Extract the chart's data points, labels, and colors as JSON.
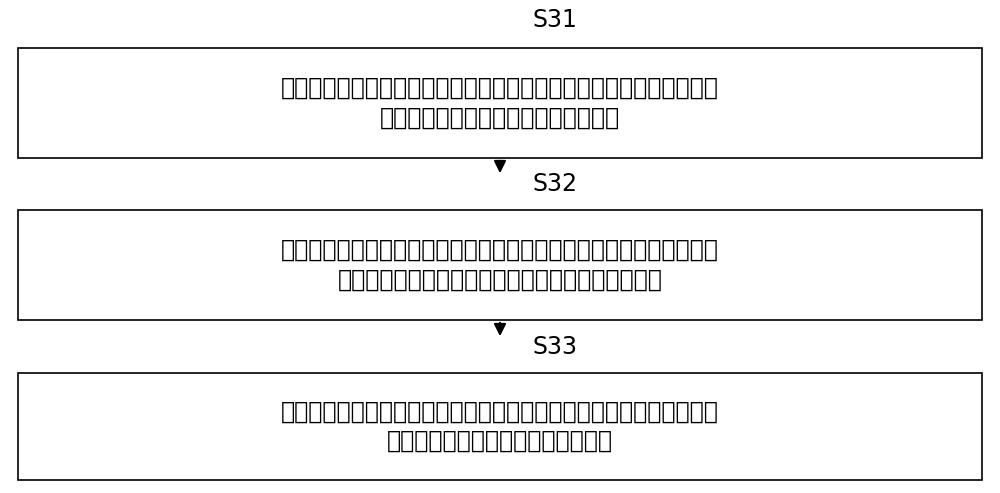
{
  "background_color": "#ffffff",
  "box_edge_color": "#000000",
  "box_fill_color": "#ffffff",
  "arrow_color": "#000000",
  "text_color": "#000000",
  "label_color": "#000000",
  "steps": [
    {
      "label": "S31",
      "line1": "实时采集负载电器的电参数，所述电参数包括电压数据、电流数据，并",
      "line2": "将所述电参数传输至所述边缘计算设备"
    },
    {
      "label": "S32",
      "line1": "通过预设分析模型根据对所述电参数整体分析得到所述负载电器的能耗",
      "line2": "分析结果，将所述能耗分析结果发送至云端管理平台"
    },
    {
      "label": "S33",
      "line1": "对边缘计算设备上传数据进行集成，实现能耗统计、能源审计，并支持",
      "line2": "对所述边缘计算设备进行管理、升级"
    }
  ],
  "font_size_text": 17,
  "font_size_label": 17,
  "figsize": [
    10.0,
    4.93
  ],
  "dpi": 100
}
